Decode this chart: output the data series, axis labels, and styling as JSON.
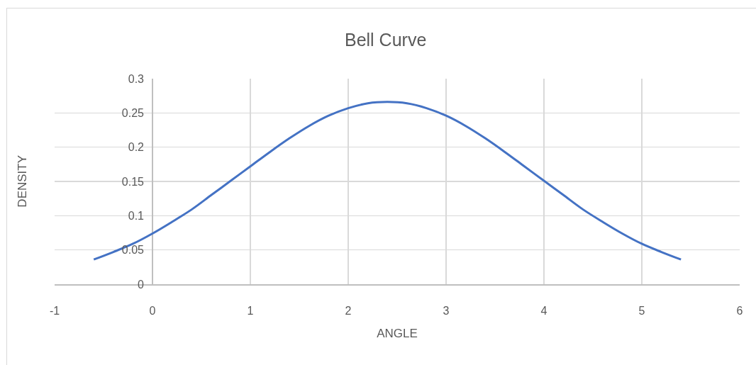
{
  "chart_data": {
    "type": "line",
    "title": "Bell Curve",
    "xlabel": "ANGLE",
    "ylabel": "DENSITY",
    "x": [
      -0.6,
      -0.4,
      -0.2,
      0,
      0.2,
      0.4,
      0.6,
      0.8,
      1.0,
      1.2,
      1.4,
      1.6,
      1.8,
      2.0,
      2.2,
      2.4,
      2.6,
      2.8,
      3.0,
      3.2,
      3.4,
      3.6,
      3.8,
      4.0,
      4.2,
      4.4,
      4.6,
      4.8,
      5.0,
      5.2,
      5.4
    ],
    "series": [
      {
        "color": "#4472c4",
        "values": [
          0.036,
          0.047,
          0.059,
          0.074,
          0.091,
          0.109,
          0.13,
          0.151,
          0.172,
          0.193,
          0.213,
          0.231,
          0.246,
          0.257,
          0.264,
          0.266,
          0.264,
          0.257,
          0.246,
          0.231,
          0.213,
          0.193,
          0.172,
          0.151,
          0.13,
          0.109,
          0.091,
          0.074,
          0.059,
          0.047,
          0.036
        ]
      }
    ],
    "xlim": [
      -1,
      6
    ],
    "xticks": [
      -1,
      0,
      1,
      2,
      3,
      4,
      5,
      6
    ],
    "ylim": [
      0,
      0.3
    ],
    "yticks": [
      0,
      0.05,
      0.1,
      0.15,
      0.2,
      0.25,
      0.3
    ],
    "grid": true,
    "marker": "none",
    "line_style": "solid"
  }
}
